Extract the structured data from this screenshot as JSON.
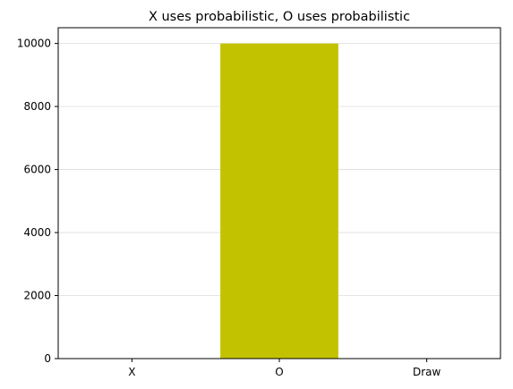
{
  "chart_data": {
    "type": "bar",
    "title": "X uses probabilistic, O uses probabilistic",
    "xlabel": "",
    "ylabel": "",
    "categories": [
      "X",
      "O",
      "Draw"
    ],
    "values": [
      0,
      10000,
      0
    ],
    "ylim": [
      0,
      10500
    ],
    "yticks": [
      0,
      2000,
      4000,
      6000,
      8000,
      10000
    ],
    "grid": "y",
    "bar_color": "#c2c200"
  }
}
